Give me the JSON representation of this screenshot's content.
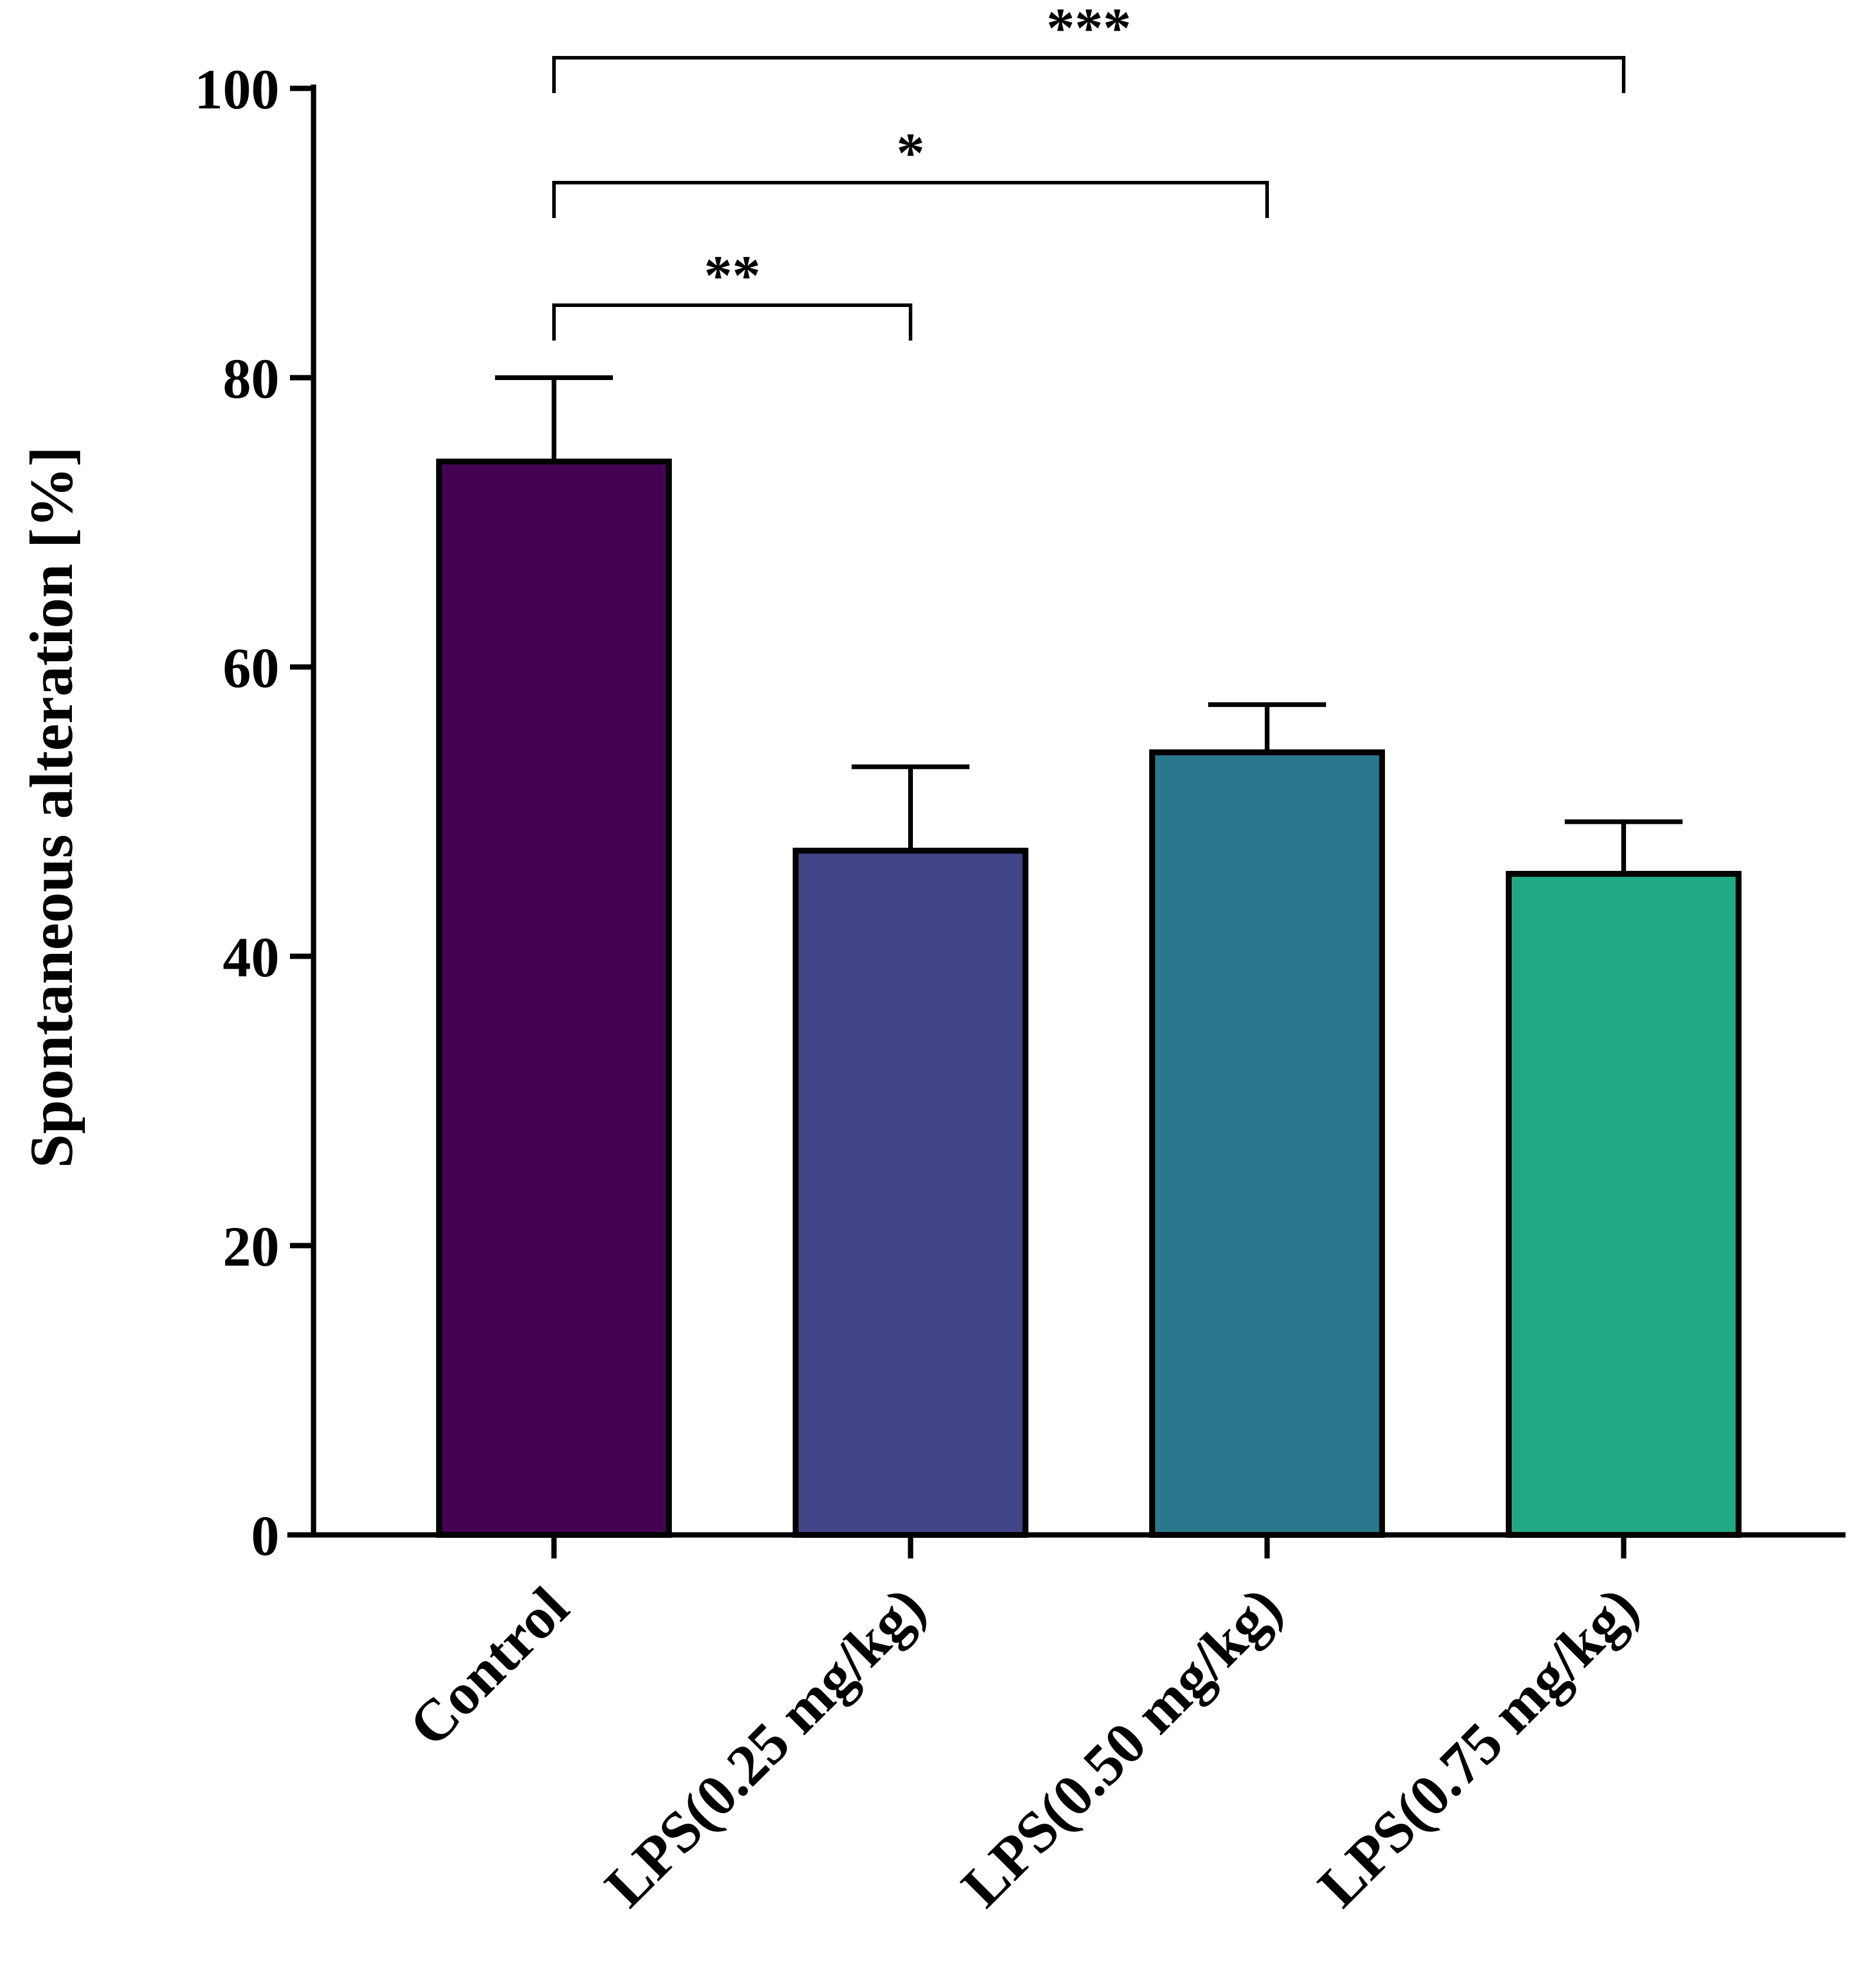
{
  "chart_data": {
    "type": "bar",
    "title": "",
    "xlabel": "",
    "ylabel": "Spontaneous alteration [%]",
    "ylim": [
      0,
      100
    ],
    "yticks": [
      0,
      20,
      40,
      60,
      80,
      100
    ],
    "categories": [
      "Control",
      "LPS(0.25 mg/kg)",
      "LPS(0.50 mg/kg)",
      "LPS(0.75 mg/kg)"
    ],
    "values": [
      74.2,
      47.3,
      54.1,
      45.7
    ],
    "errors": [
      5.8,
      5.8,
      3.3,
      3.6
    ],
    "colors": [
      "#440154",
      "#414487",
      "#2a788e",
      "#22a884"
    ],
    "grid": false,
    "legend": "none",
    "significance": [
      {
        "from": 0,
        "to": 1,
        "label": "**",
        "level": 1
      },
      {
        "from": 0,
        "to": 2,
        "label": "*",
        "level": 2
      },
      {
        "from": 0,
        "to": 3,
        "label": "***",
        "level": 3
      }
    ]
  }
}
